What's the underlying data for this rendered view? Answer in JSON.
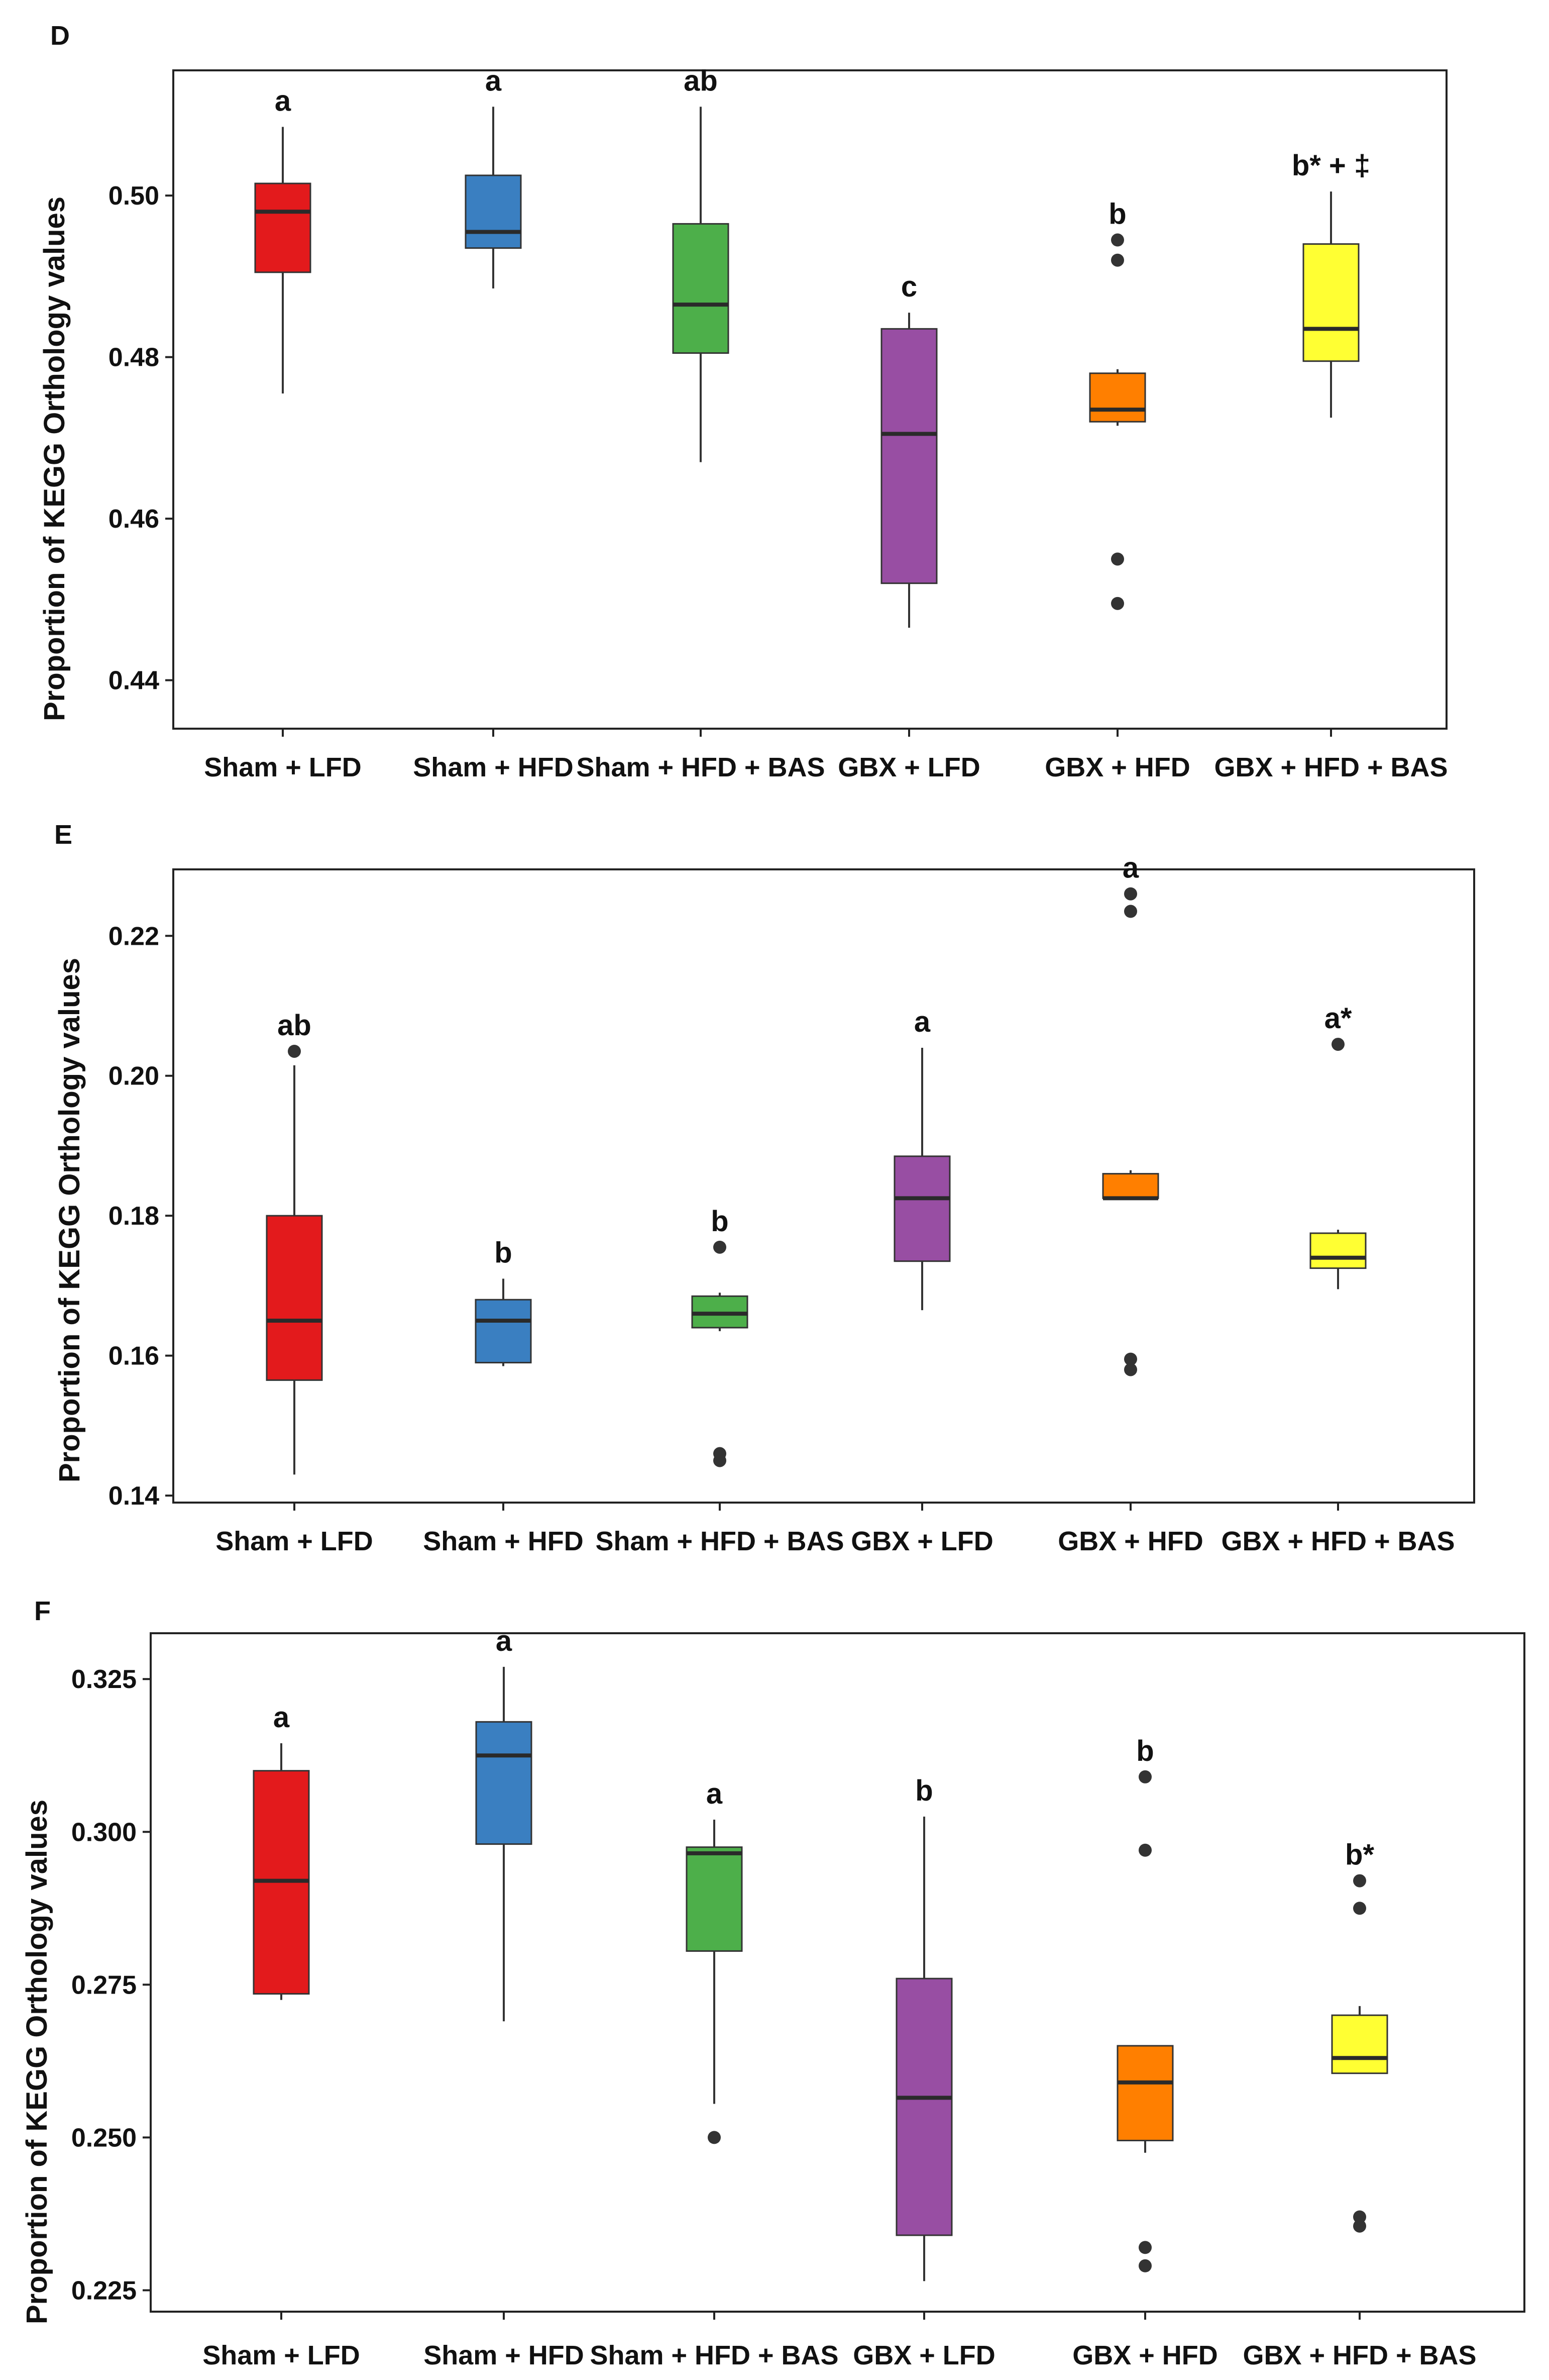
{
  "chart_data": [
    {
      "panel": "D",
      "type": "box",
      "ylabel": "Proportion of KEGG Orthology values",
      "yticks": [
        0.44,
        0.46,
        0.48,
        0.5
      ],
      "ytick_labels": [
        "0.44",
        "0.46",
        "0.48",
        "0.50"
      ],
      "ylim": [
        0.434,
        0.5155
      ],
      "groups": [
        {
          "name": "Sham + LFD",
          "color": "#e31a1c",
          "whisker_low": 0.4755,
          "q1": 0.4905,
          "median": 0.498,
          "q3": 0.5015,
          "whisker_high": 0.5085,
          "outliers": [],
          "sig": "a"
        },
        {
          "name": "Sham + HFD",
          "color": "#3a7fc1",
          "whisker_low": 0.4885,
          "q1": 0.4935,
          "median": 0.4955,
          "q3": 0.5025,
          "whisker_high": 0.511,
          "outliers": [],
          "sig": "a"
        },
        {
          "name": "Sham + HFD + BAS",
          "color": "#4daf4a",
          "whisker_low": 0.467,
          "q1": 0.4805,
          "median": 0.4865,
          "q3": 0.4965,
          "whisker_high": 0.511,
          "outliers": [],
          "sig": "ab"
        },
        {
          "name": "GBX + LFD",
          "color": "#984ea3",
          "whisker_low": 0.4465,
          "q1": 0.452,
          "median": 0.4705,
          "q3": 0.4835,
          "whisker_high": 0.4855,
          "outliers": [],
          "sig": "c"
        },
        {
          "name": "GBX + HFD",
          "color": "#ff7f00",
          "whisker_low": 0.4715,
          "q1": 0.472,
          "median": 0.4735,
          "q3": 0.478,
          "whisker_high": 0.4785,
          "outliers": [
            0.4945,
            0.492,
            0.455,
            0.4495
          ],
          "sig": "b"
        },
        {
          "name": "GBX + HFD + BAS",
          "color": "#ffff33",
          "whisker_low": 0.4725,
          "q1": 0.4795,
          "median": 0.4835,
          "q3": 0.494,
          "whisker_high": 0.5005,
          "outliers": [],
          "sig": "b* + ‡"
        }
      ]
    },
    {
      "panel": "E",
      "type": "box",
      "ylabel": "Proportion of KEGG Orthology values",
      "yticks": [
        0.14,
        0.16,
        0.18,
        0.2,
        0.22
      ],
      "ytick_labels": [
        "0.14",
        "0.16",
        "0.18",
        "0.20",
        "0.22"
      ],
      "ylim": [
        0.139,
        0.2295
      ],
      "groups": [
        {
          "name": "Sham + LFD",
          "color": "#e31a1c",
          "whisker_low": 0.143,
          "q1": 0.1565,
          "median": 0.165,
          "q3": 0.18,
          "whisker_high": 0.2015,
          "outliers": [
            0.2035
          ],
          "sig": "ab"
        },
        {
          "name": "Sham + HFD",
          "color": "#3a7fc1",
          "whisker_low": 0.1585,
          "q1": 0.159,
          "median": 0.165,
          "q3": 0.168,
          "whisker_high": 0.171,
          "outliers": [],
          "sig": "b"
        },
        {
          "name": "Sham + HFD + BAS",
          "color": "#4daf4a",
          "whisker_low": 0.1635,
          "q1": 0.164,
          "median": 0.166,
          "q3": 0.1685,
          "whisker_high": 0.169,
          "outliers": [
            0.1755,
            0.146,
            0.145
          ],
          "sig": "b"
        },
        {
          "name": "GBX + LFD",
          "color": "#984ea3",
          "whisker_low": 0.1665,
          "q1": 0.1735,
          "median": 0.1825,
          "q3": 0.1885,
          "whisker_high": 0.204,
          "outliers": [],
          "sig": "a"
        },
        {
          "name": "GBX + HFD",
          "color": "#ff7f00",
          "whisker_low": 0.1825,
          "q1": 0.1825,
          "median": 0.1825,
          "q3": 0.186,
          "whisker_high": 0.1865,
          "outliers": [
            0.226,
            0.2235,
            0.1595,
            0.158
          ],
          "sig": "a"
        },
        {
          "name": "GBX + HFD + BAS",
          "color": "#ffff33",
          "whisker_low": 0.1695,
          "q1": 0.1725,
          "median": 0.174,
          "q3": 0.1775,
          "whisker_high": 0.178,
          "outliers": [
            0.2045
          ],
          "sig": "a*"
        }
      ]
    },
    {
      "panel": "F",
      "type": "box",
      "ylabel": "Proportion of KEGG Orthology values",
      "yticks": [
        0.225,
        0.25,
        0.275,
        0.3,
        0.325
      ],
      "ytick_labels": [
        "0.225",
        "0.250",
        "0.275",
        "0.300",
        "0.325"
      ],
      "ylim": [
        0.2215,
        0.3325
      ],
      "groups": [
        {
          "name": "Sham + LFD",
          "color": "#e31a1c",
          "whisker_low": 0.2725,
          "q1": 0.2735,
          "median": 0.292,
          "q3": 0.31,
          "whisker_high": 0.3145,
          "outliers": [],
          "sig": "a"
        },
        {
          "name": "Sham + HFD",
          "color": "#3a7fc1",
          "whisker_low": 0.269,
          "q1": 0.298,
          "median": 0.3125,
          "q3": 0.318,
          "whisker_high": 0.327,
          "outliers": [],
          "sig": "a"
        },
        {
          "name": "Sham + HFD + BAS",
          "color": "#4daf4a",
          "whisker_low": 0.2555,
          "q1": 0.2805,
          "median": 0.2965,
          "q3": 0.2975,
          "whisker_high": 0.302,
          "outliers": [
            0.25
          ],
          "sig": "a"
        },
        {
          "name": "GBX + LFD",
          "color": "#984ea3",
          "whisker_low": 0.2265,
          "q1": 0.234,
          "median": 0.2565,
          "q3": 0.276,
          "whisker_high": 0.3025,
          "outliers": [],
          "sig": "b"
        },
        {
          "name": "GBX + HFD",
          "color": "#ff7f00",
          "whisker_low": 0.2475,
          "q1": 0.2495,
          "median": 0.259,
          "q3": 0.265,
          "whisker_high": 0.265,
          "outliers": [
            0.309,
            0.297,
            0.232,
            0.229
          ],
          "sig": "b"
        },
        {
          "name": "GBX + HFD + BAS",
          "color": "#ffff33",
          "whisker_low": 0.2605,
          "q1": 0.2605,
          "median": 0.263,
          "q3": 0.27,
          "whisker_high": 0.2715,
          "outliers": [
            0.292,
            0.2875,
            0.237,
            0.2355
          ],
          "sig": "b*"
        }
      ]
    }
  ]
}
